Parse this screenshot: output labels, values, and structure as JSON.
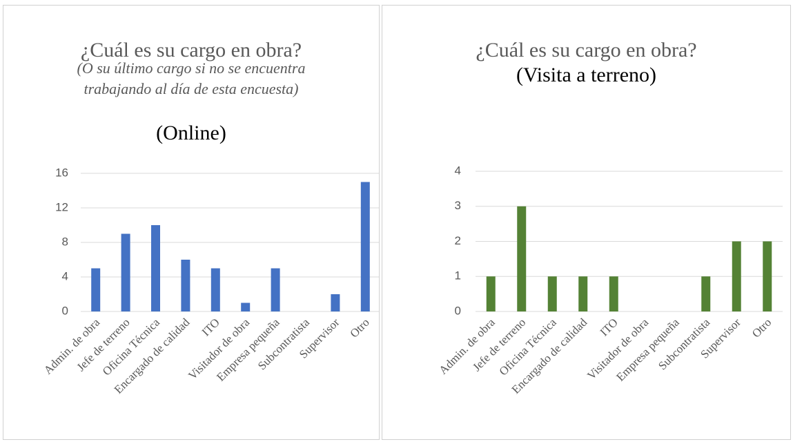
{
  "chart_data": [
    {
      "type": "bar",
      "title": "¿Cuál es su cargo en obra?",
      "subtitle": "(O su último cargo si no se encuentra trabajando al día de esta encuesta)",
      "tag": "(Online)",
      "categories": [
        "Admin. de obra",
        "Jefe de terreno",
        "Oficina Técnica",
        "Encargado de calidad",
        "ITO",
        "Visitador de obra",
        "Empresa pequeña",
        "Subcontratista",
        "Supervisor",
        "Otro"
      ],
      "values": [
        5,
        9,
        10,
        6,
        5,
        1,
        5,
        0,
        2,
        15
      ],
      "color": "#4472c4",
      "ylim": [
        0,
        16
      ],
      "yticks": [
        0,
        4,
        8,
        12,
        16
      ],
      "grid": true
    },
    {
      "type": "bar",
      "title": "¿Cuál es su cargo en obra?",
      "tag": "(Visita a terreno)",
      "categories": [
        "Admin. de obra",
        "Jefe de terreno",
        "Oficina Técnica",
        "Encargado de calidad",
        "ITO",
        "Visitador de obra",
        "Empresa pequeña",
        "Subcontratista",
        "Supervisor",
        "Otro"
      ],
      "values": [
        1,
        3,
        1,
        1,
        1,
        0,
        0,
        1,
        2,
        2
      ],
      "color": "#548235",
      "ylim": [
        0,
        4
      ],
      "yticks": [
        0,
        1,
        2,
        3,
        4
      ],
      "grid": true
    }
  ]
}
